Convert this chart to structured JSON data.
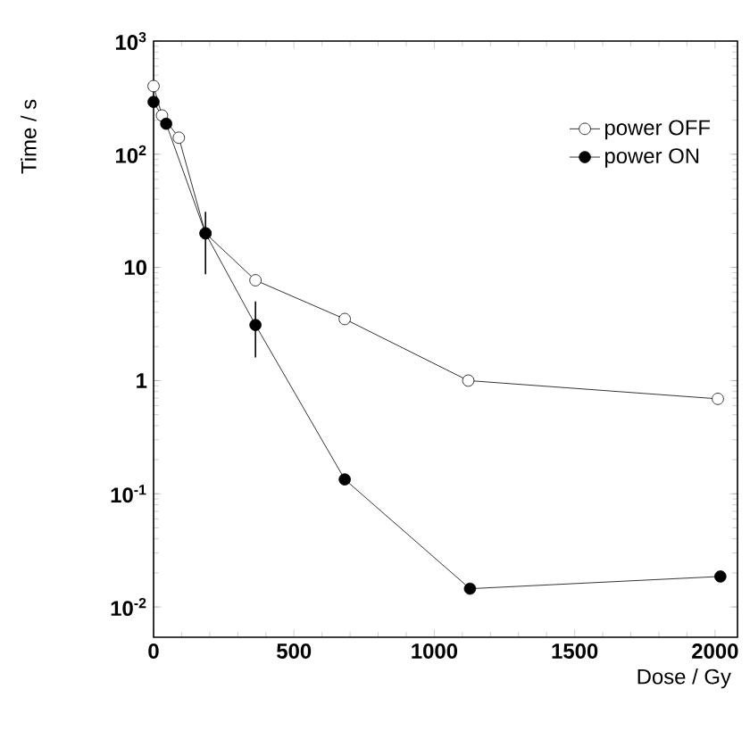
{
  "chart_data": {
    "type": "line",
    "xlabel": "Dose / Gy",
    "ylabel": "Time / s",
    "log": "y",
    "marker": "circle",
    "legend": "top right",
    "xlim": [
      0,
      2080
    ],
    "xticks": [
      0,
      500,
      1000,
      1500,
      2000
    ],
    "ylim": [
      0.0054,
      1000
    ],
    "yticks": [
      {
        "value": 0.01,
        "label": "10$^{-2}$"
      },
      {
        "value": 0.1,
        "label": "10$^{-1}$"
      },
      1,
      10,
      {
        "value": 100,
        "label": "10$^{2}$"
      },
      {
        "value": 1000,
        "label": "10$^{3}$"
      }
    ],
    "series": [
      {
        "name": "power OFF",
        "color": "#000000",
        "x": [
          0,
          30,
          90,
          185,
          363,
          681,
          1121,
          2010
        ],
        "values": [
          400,
          220,
          140,
          20,
          7.7,
          3.5,
          1.0,
          0.69
        ]
      },
      {
        "name": "power ON",
        "color": "#000000",
        "x": [
          0,
          45,
          185,
          363,
          681,
          1127,
          2019
        ],
        "values": [
          290,
          186,
          20,
          3.1,
          0.134,
          0.0145,
          0.0186
        ],
        "errors": [
          null,
          null,
          [
            8.7,
            31
          ],
          [
            1.6,
            5.0
          ],
          null,
          null,
          null
        ]
      }
    ]
  }
}
